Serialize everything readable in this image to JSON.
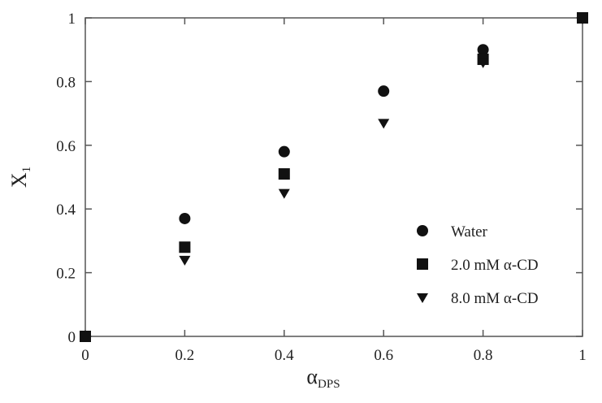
{
  "chart_data": {
    "type": "scatter",
    "xlabel": "α",
    "xlabel_sub": "DPS",
    "ylabel": "X",
    "ylabel_sub": "1",
    "xlim": [
      0,
      1
    ],
    "ylim": [
      0,
      1
    ],
    "xticks": [
      "0",
      "0.2",
      "0.4",
      "0.6",
      "0.8",
      "1"
    ],
    "yticks": [
      "0",
      "0.2",
      "0.4",
      "0.6",
      "0.8",
      "1"
    ],
    "grid": false,
    "legend_position": "lower-right",
    "series": [
      {
        "name": "Water",
        "marker": "circle",
        "color": "#111111",
        "x": [
          0,
          0.2,
          0.4,
          0.6,
          0.8,
          1
        ],
        "y": [
          0,
          0.37,
          0.58,
          0.77,
          0.9,
          1
        ]
      },
      {
        "name": "2.0 mM α-CD",
        "marker": "square",
        "color": "#111111",
        "x": [
          0,
          0.2,
          0.4,
          0.8,
          1
        ],
        "y": [
          0,
          0.28,
          0.51,
          0.87,
          1
        ]
      },
      {
        "name": "8.0 mM α-CD",
        "marker": "triangle-down",
        "color": "#111111",
        "x": [
          0,
          0.2,
          0.4,
          0.6,
          0.8,
          1
        ],
        "y": [
          0,
          0.24,
          0.45,
          0.67,
          0.86,
          1
        ]
      }
    ]
  }
}
